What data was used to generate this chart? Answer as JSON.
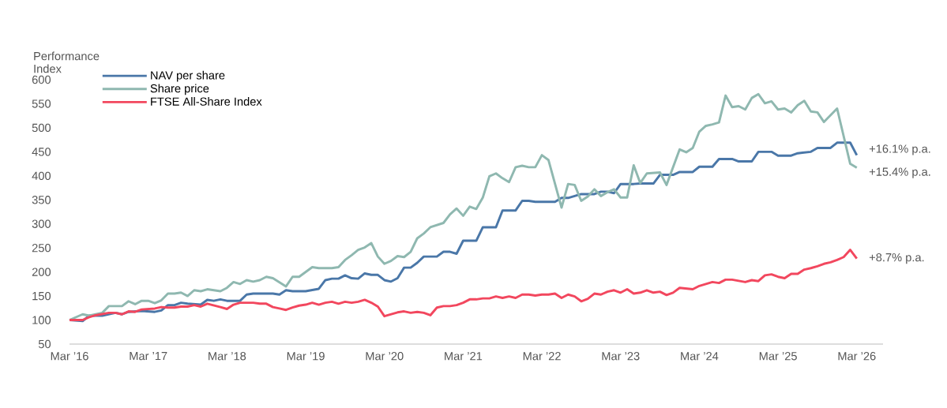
{
  "chart_data": {
    "type": "line",
    "ylabel": "Performance Index",
    "series": [
      {
        "name": "NAV per share",
        "color": "#4a77a8",
        "x": [
          "2016-03",
          "2016-05",
          "2016-06",
          "2016-08",
          "2016-10",
          "2016-11",
          "2016-12",
          "2017-02",
          "2017-04",
          "2017-05",
          "2017-06",
          "2017-07",
          "2017-08",
          "2017-09",
          "2017-11",
          "2017-12",
          "2018-01",
          "2018-02",
          "2018-03",
          "2018-05",
          "2018-06",
          "2018-07",
          "2018-10",
          "2018-11",
          "2018-12",
          "2019-01",
          "2019-03",
          "2019-05",
          "2019-06",
          "2019-07",
          "2019-08",
          "2019-09",
          "2019-10",
          "2019-11",
          "2019-12",
          "2020-01",
          "2020-02",
          "2020-03",
          "2020-04",
          "2020-05",
          "2020-06",
          "2020-07",
          "2020-08",
          "2020-09",
          "2020-11",
          "2020-12",
          "2021-01",
          "2021-02",
          "2021-03",
          "2021-05",
          "2021-06",
          "2021-08",
          "2021-09",
          "2021-11",
          "2021-12",
          "2022-01",
          "2022-02",
          "2022-05",
          "2022-06",
          "2022-07",
          "2022-09",
          "2022-11",
          "2022-12",
          "2023-01",
          "2023-02",
          "2023-03",
          "2023-05",
          "2023-06",
          "2023-08",
          "2023-09",
          "2023-11",
          "2023-12",
          "2024-02",
          "2024-03",
          "2024-05",
          "2024-06",
          "2024-08",
          "2024-09",
          "2024-11",
          "2024-12",
          "2025-02",
          "2025-03",
          "2025-05",
          "2025-06",
          "2025-08",
          "2025-09",
          "2025-11",
          "2025-12",
          "2026-02",
          "2026-03"
        ],
        "values": [
          100,
          98,
          109,
          109,
          115,
          112,
          117,
          119,
          117,
          120,
          131,
          131,
          136,
          134,
          132,
          142,
          140,
          143,
          140,
          140,
          153,
          155,
          155,
          153,
          162,
          160,
          160,
          165,
          183,
          186,
          186,
          193,
          187,
          186,
          197,
          194,
          194,
          183,
          180,
          187,
          209,
          209,
          219,
          232,
          232,
          242,
          242,
          238,
          265,
          265,
          293,
          293,
          328,
          328,
          348,
          348,
          346,
          346,
          354,
          354,
          362,
          362,
          367,
          367,
          364,
          383,
          383,
          384,
          384,
          402,
          402,
          408,
          408,
          419,
          419,
          435,
          435,
          430,
          430,
          450,
          450,
          442,
          442,
          447,
          450,
          458,
          458,
          469,
          469,
          443
        ]
      },
      {
        "name": "Share price",
        "color": "#8fb8b0",
        "x": [
          "2016-03",
          "2016-05",
          "2016-06",
          "2016-08",
          "2016-09",
          "2016-11",
          "2016-12",
          "2017-01",
          "2017-02",
          "2017-03",
          "2017-04",
          "2017-05",
          "2017-06",
          "2017-07",
          "2017-08",
          "2017-09",
          "2017-10",
          "2017-11",
          "2017-12",
          "2018-02",
          "2018-03",
          "2018-04",
          "2018-05",
          "2018-06",
          "2018-07",
          "2018-08",
          "2018-09",
          "2018-10",
          "2018-12",
          "2019-01",
          "2019-02",
          "2019-04",
          "2019-05",
          "2019-07",
          "2019-08",
          "2019-09",
          "2019-10",
          "2019-11",
          "2019-12",
          "2020-01",
          "2020-02",
          "2020-03",
          "2020-04",
          "2020-05",
          "2020-06",
          "2020-07",
          "2020-08",
          "2020-09",
          "2020-10",
          "2020-12",
          "2021-01",
          "2021-02",
          "2021-03",
          "2021-04",
          "2021-05",
          "2021-06",
          "2021-07",
          "2021-08",
          "2021-09",
          "2021-10",
          "2021-11",
          "2021-12",
          "2022-01",
          "2022-02",
          "2022-03",
          "2022-04",
          "2022-06",
          "2022-07",
          "2022-08",
          "2022-09",
          "2022-10",
          "2022-11",
          "2022-12",
          "2023-01",
          "2023-02",
          "2023-03",
          "2023-04",
          "2023-05",
          "2023-06",
          "2023-07",
          "2023-09",
          "2023-10",
          "2023-12",
          "2024-01",
          "2024-02",
          "2024-03",
          "2024-04",
          "2024-05",
          "2024-06",
          "2024-07",
          "2024-08",
          "2024-09",
          "2024-10",
          "2024-11",
          "2024-12",
          "2025-01",
          "2025-02",
          "2025-03",
          "2025-04",
          "2025-05",
          "2025-06",
          "2025-07",
          "2025-08",
          "2025-09",
          "2025-10",
          "2025-12",
          "2026-02",
          "2026-03"
        ],
        "values": [
          100,
          112,
          109,
          115,
          129,
          129,
          139,
          133,
          140,
          140,
          135,
          141,
          155,
          155,
          157,
          150,
          162,
          160,
          164,
          160,
          167,
          179,
          175,
          183,
          180,
          183,
          190,
          187,
          170,
          190,
          190,
          210,
          208,
          208,
          210,
          225,
          235,
          246,
          251,
          260,
          232,
          217,
          223,
          233,
          231,
          242,
          270,
          280,
          293,
          302,
          320,
          332,
          317,
          336,
          331,
          355,
          399,
          405,
          395,
          387,
          418,
          421,
          418,
          418,
          443,
          433,
          334,
          383,
          381,
          348,
          357,
          372,
          358,
          366,
          372,
          355,
          355,
          422,
          385,
          405,
          407,
          381,
          455,
          449,
          458,
          492,
          504,
          507,
          511,
          567,
          543,
          545,
          538,
          562,
          570,
          551,
          555,
          538,
          540,
          532,
          547,
          556,
          534,
          532,
          512,
          540,
          425,
          417
        ]
      },
      {
        "name": "FTSE All-Share Index",
        "color": "#f2475e",
        "x": [
          "2016-03",
          "2016-05",
          "2016-06",
          "2016-07",
          "2016-09",
          "2016-10",
          "2016-11",
          "2016-12",
          "2017-01",
          "2017-02",
          "2017-04",
          "2017-05",
          "2017-06",
          "2017-07",
          "2017-08",
          "2017-09",
          "2017-10",
          "2017-11",
          "2017-12",
          "2018-02",
          "2018-03",
          "2018-04",
          "2018-05",
          "2018-07",
          "2018-08",
          "2018-09",
          "2018-10",
          "2018-11",
          "2018-12",
          "2019-01",
          "2019-02",
          "2019-03",
          "2019-04",
          "2019-05",
          "2019-06",
          "2019-07",
          "2019-08",
          "2019-09",
          "2019-10",
          "2019-11",
          "2019-12",
          "2020-01",
          "2020-02",
          "2020-03",
          "2020-04",
          "2020-05",
          "2020-06",
          "2020-07",
          "2020-08",
          "2020-09",
          "2020-10",
          "2020-11",
          "2020-12",
          "2021-01",
          "2021-02",
          "2021-03",
          "2021-04",
          "2021-05",
          "2021-06",
          "2021-07",
          "2021-08",
          "2021-09",
          "2021-10",
          "2021-11",
          "2021-12",
          "2022-01",
          "2022-02",
          "2022-03",
          "2022-04",
          "2022-05",
          "2022-06",
          "2022-07",
          "2022-08",
          "2022-09",
          "2022-10",
          "2022-11",
          "2022-12",
          "2023-01",
          "2023-02",
          "2023-03",
          "2023-04",
          "2023-05",
          "2023-06",
          "2023-07",
          "2023-08",
          "2023-09",
          "2023-10",
          "2023-11",
          "2023-12",
          "2024-02",
          "2024-03",
          "2024-05",
          "2024-06",
          "2024-07",
          "2024-08",
          "2024-10",
          "2024-11",
          "2024-12",
          "2025-01",
          "2025-02",
          "2025-03",
          "2025-04",
          "2025-05",
          "2025-06",
          "2025-07",
          "2025-08",
          "2025-09",
          "2025-10",
          "2025-11",
          "2025-12",
          "2026-01",
          "2026-02",
          "2026-03"
        ],
        "values": [
          100,
          100,
          106,
          110,
          115,
          115,
          112,
          118,
          117,
          122,
          124,
          127,
          126,
          126,
          128,
          128,
          131,
          128,
          134,
          127,
          123,
          132,
          136,
          136,
          134,
          134,
          127,
          124,
          121,
          126,
          130,
          132,
          136,
          132,
          136,
          138,
          134,
          138,
          136,
          138,
          142,
          136,
          128,
          108,
          112,
          116,
          118,
          115,
          117,
          115,
          110,
          126,
          129,
          129,
          131,
          136,
          143,
          143,
          145,
          145,
          149,
          146,
          149,
          146,
          153,
          153,
          151,
          153,
          153,
          155,
          146,
          153,
          149,
          139,
          144,
          155,
          153,
          159,
          162,
          157,
          164,
          155,
          157,
          162,
          157,
          159,
          152,
          157,
          167,
          164,
          171,
          179,
          177,
          184,
          184,
          179,
          183,
          181,
          193,
          195,
          190,
          187,
          196,
          196,
          205,
          208,
          212,
          217,
          220,
          225,
          231,
          246,
          228
        ]
      }
    ],
    "xlim": [
      "2016-03",
      "2026-07"
    ],
    "xticks": [
      {
        "value": "2016-03",
        "label": "Mar ’16"
      },
      {
        "value": "2017-03",
        "label": "Mar ’17"
      },
      {
        "value": "2018-03",
        "label": "Mar ’18"
      },
      {
        "value": "2019-03",
        "label": "Mar ’19"
      },
      {
        "value": "2020-03",
        "label": "Mar ’20"
      },
      {
        "value": "2021-03",
        "label": "Mar ’21"
      },
      {
        "value": "2022-03",
        "label": "Mar ’22"
      },
      {
        "value": "2023-03",
        "label": "Mar ’23"
      },
      {
        "value": "2024-03",
        "label": "Mar ’24"
      },
      {
        "value": "2025-03",
        "label": "Mar ’25"
      },
      {
        "value": "2026-03",
        "label": "Mar ’26"
      }
    ],
    "ylim": [
      50,
      600
    ],
    "yticks": [
      50,
      100,
      150,
      200,
      250,
      300,
      350,
      400,
      450,
      500,
      550,
      600
    ],
    "legend": "top left",
    "annotations": [
      {
        "text": "+16.1% p.a.",
        "x": "2026-03",
        "y": 443
      },
      {
        "text": "+15.4% p.a.",
        "x": "2026-03",
        "y": 417
      },
      {
        "text": "+8.7% p.a.",
        "x": "2026-03",
        "y": 228
      }
    ]
  }
}
